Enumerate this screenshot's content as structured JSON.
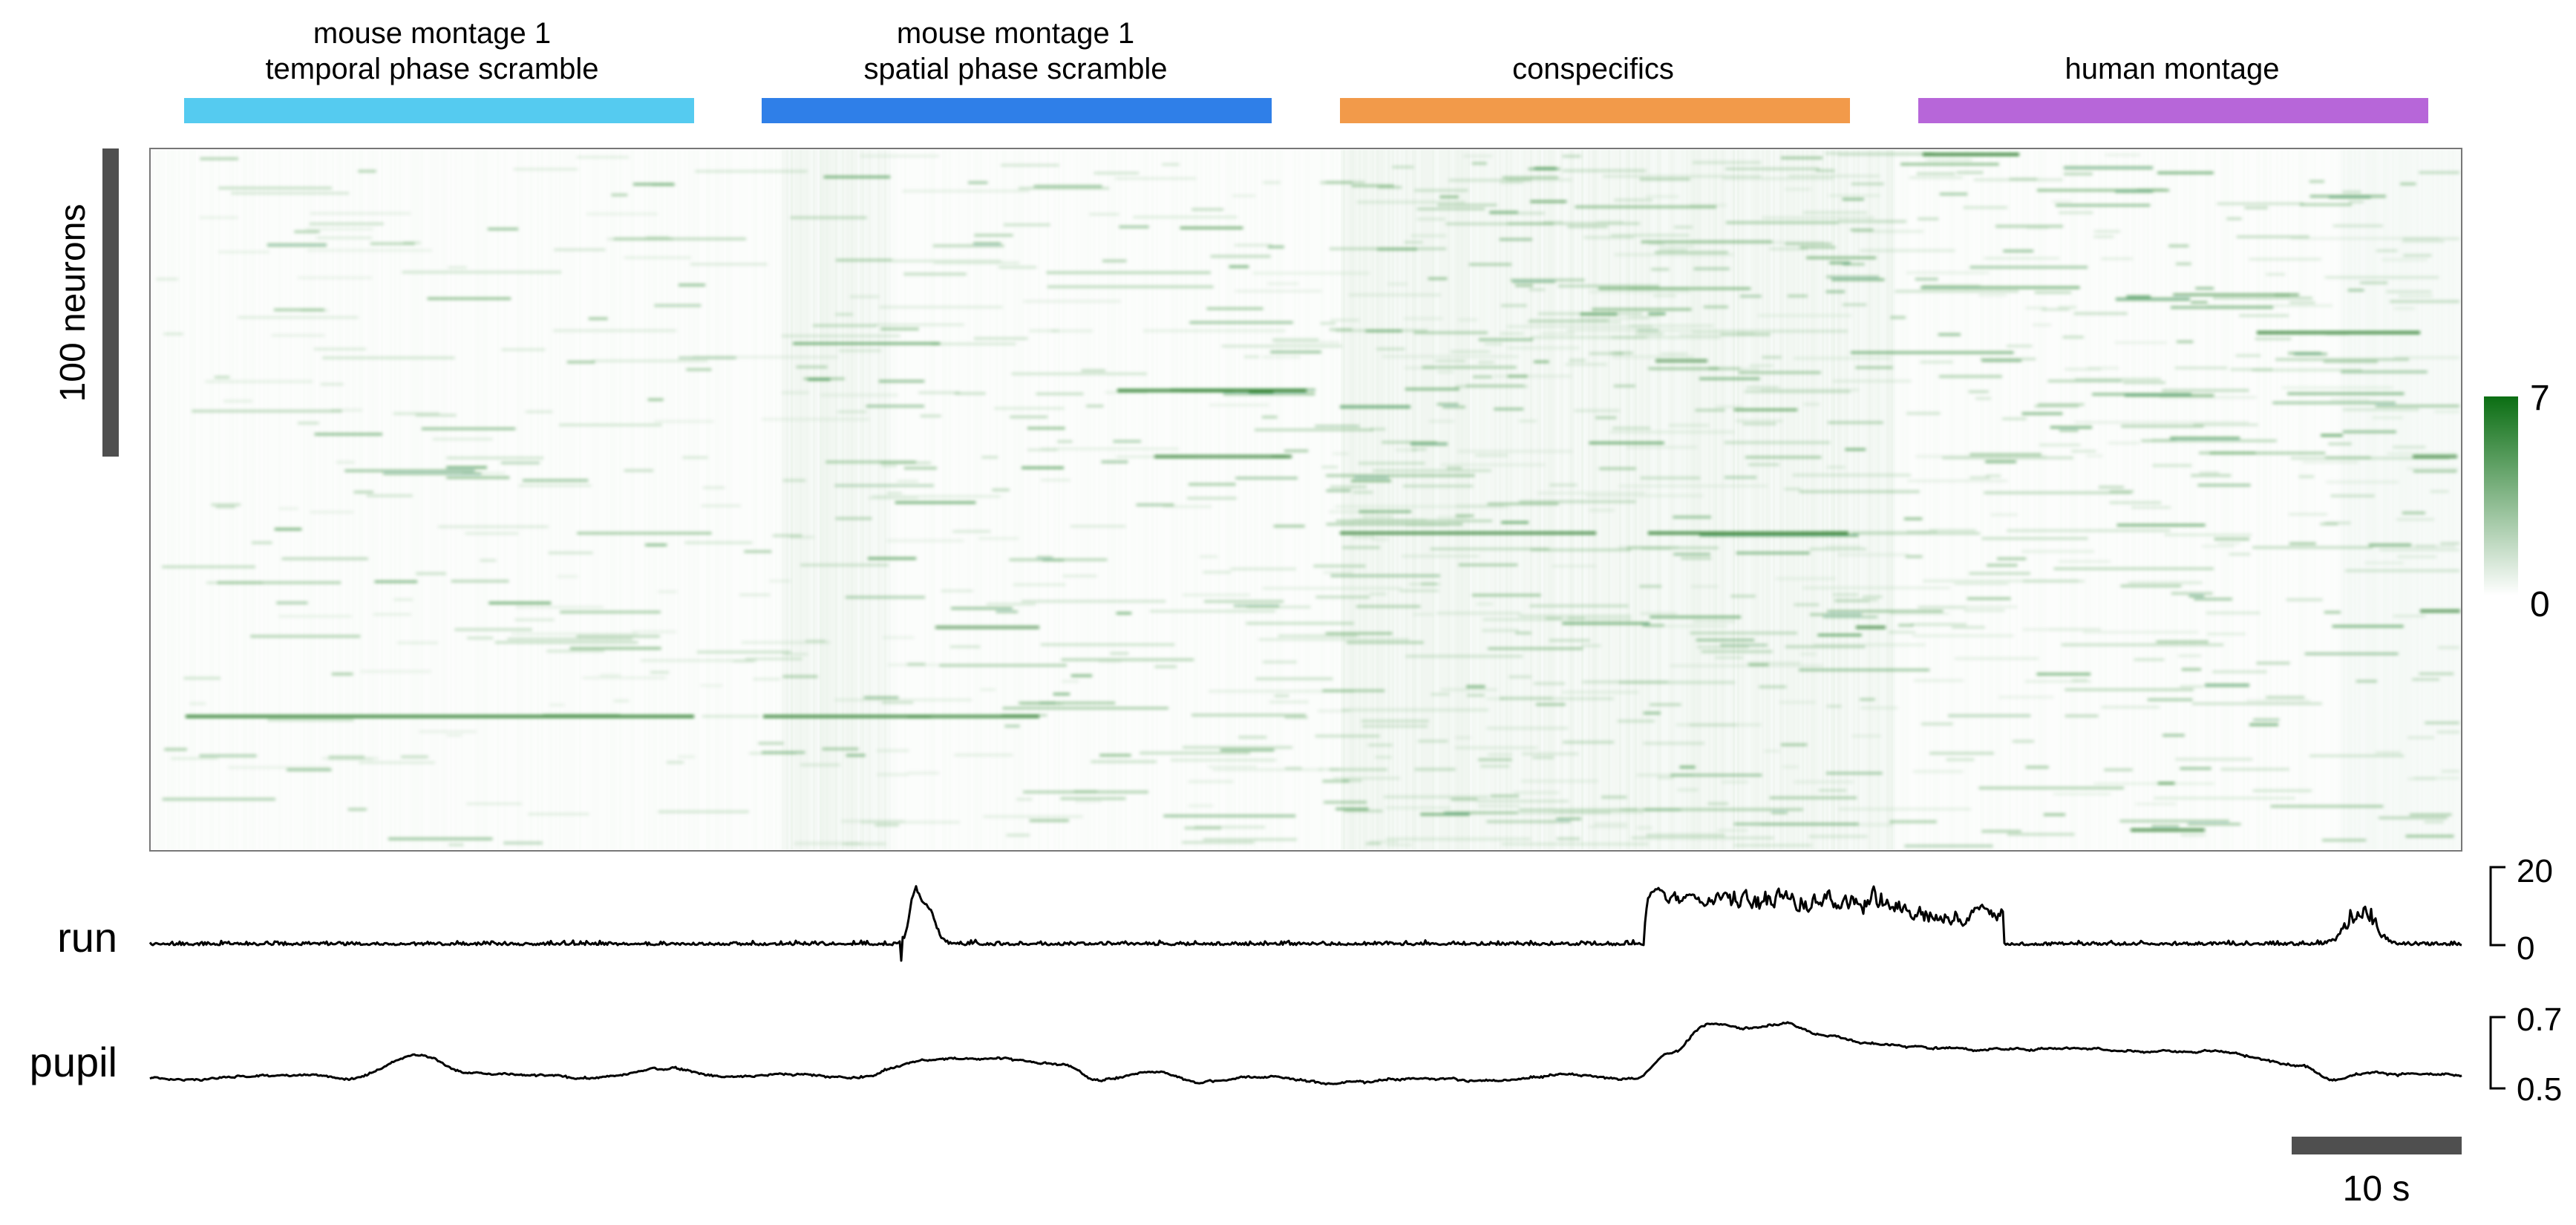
{
  "chart_data": {
    "type": "heatmap",
    "conditions": [
      {
        "label_line1": "mouse montage 1",
        "label_line2": "temporal phase scramble",
        "color": "#55CBF0"
      },
      {
        "label_line1": "mouse montage 1",
        "label_line2": "spatial phase scramble",
        "color": "#2F7FE8"
      },
      {
        "label_line1": "",
        "label_line2": "conspecifics",
        "color": "#F29A4A"
      },
      {
        "label_line1": "",
        "label_line2": "human montage",
        "color": "#B766D9"
      }
    ],
    "neuron_scale_label": "100 neurons",
    "colorbar": {
      "min": 0,
      "max": 7,
      "min_label": "0",
      "max_label": "7",
      "color_low": "#ffffff",
      "color_high": "#0b6e13"
    },
    "colormap_color": "#0b6e13",
    "traces": [
      {
        "name": "run",
        "label": "run",
        "ticks": [
          "20",
          "0"
        ],
        "range": [
          0,
          20
        ]
      },
      {
        "name": "pupil",
        "label": "pupil",
        "ticks": [
          "0.7",
          "0.5"
        ],
        "range": [
          0.5,
          0.7
        ]
      }
    ],
    "time_scalebar_label": "10 s",
    "time_scalebar_seconds": 10
  }
}
